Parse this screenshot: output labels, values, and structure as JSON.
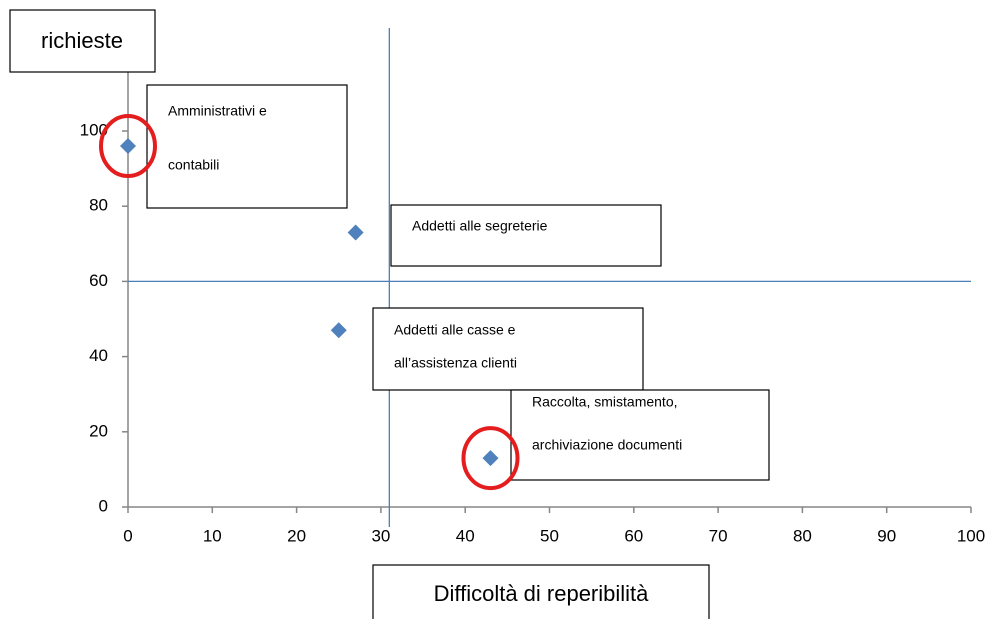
{
  "chart_data": {
    "type": "scatter",
    "x_label": "Difficoltà di reperibilità",
    "y_label": "richieste",
    "x": [
      0,
      27,
      25,
      43
    ],
    "values": [
      96,
      73,
      47,
      13
    ],
    "point_labels": [
      [
        "Amministrativi e",
        "contabili"
      ],
      [
        "Addetti alle segreterie"
      ],
      [
        "Addetti alle casse e",
        "all’assistenza clienti"
      ],
      [
        "Raccolta, smistamento,",
        "archiviazione documenti"
      ]
    ],
    "circled": [
      true,
      false,
      false,
      true
    ],
    "color": "#4f81bd",
    "circle_color": "#e41e1e",
    "ref_x": 31,
    "ref_y": 60,
    "xlim": [
      0,
      100
    ],
    "ylim": [
      0,
      120
    ],
    "xticks": [
      0,
      10,
      20,
      30,
      40,
      50,
      60,
      70,
      80,
      90,
      100
    ],
    "yticks": [
      0,
      20,
      40,
      60,
      80,
      100
    ]
  }
}
